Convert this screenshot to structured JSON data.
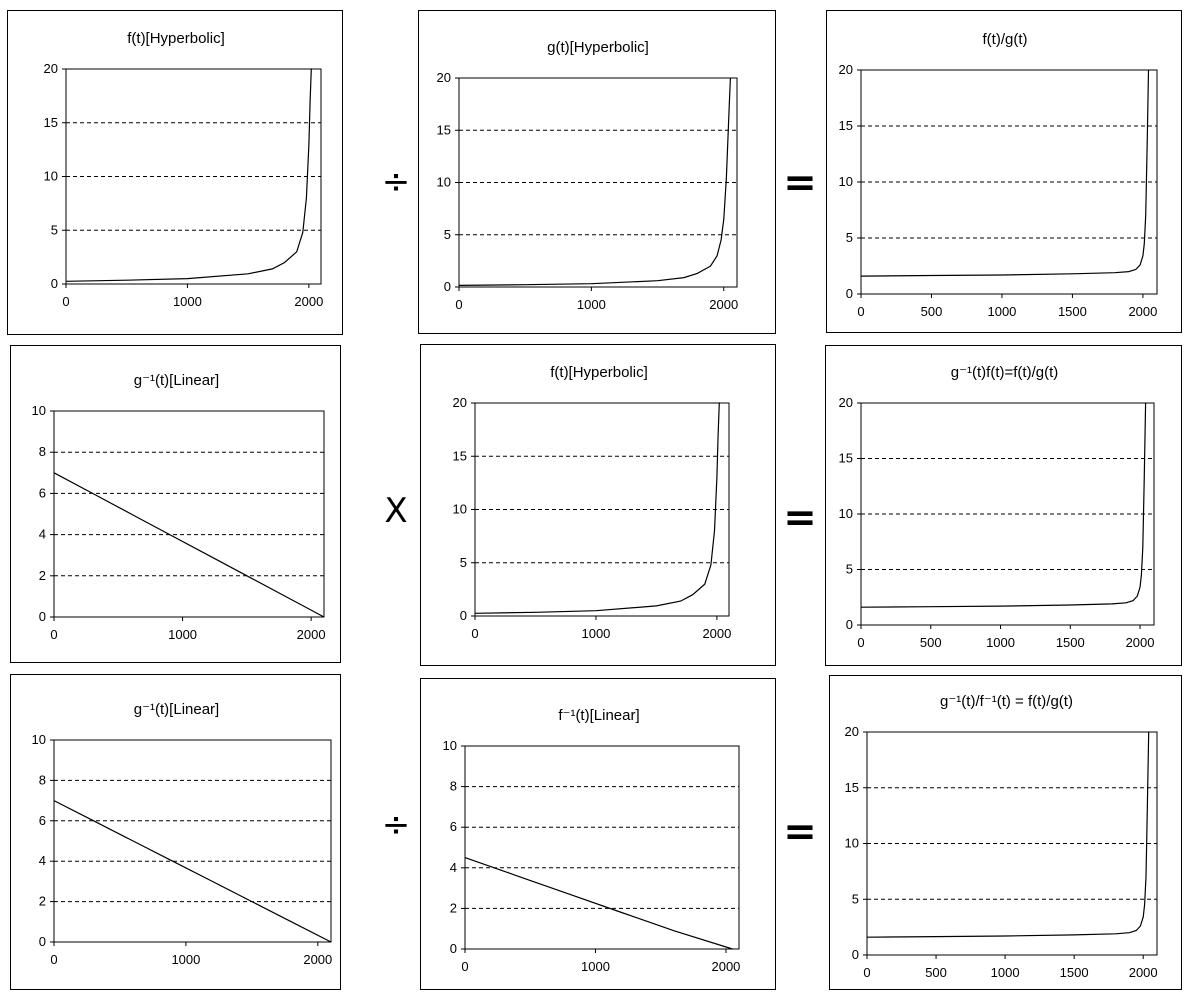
{
  "operators": [
    "÷",
    "=",
    "X",
    "=",
    "÷",
    "="
  ],
  "chart_data": [
    {
      "type": "line",
      "title": "f(t)[Hyperbolic]",
      "xticks": [
        "0",
        "1000",
        "2000"
      ],
      "xlim": [
        0,
        2100
      ],
      "yticks": [
        "0",
        "5",
        "10",
        "15",
        "20"
      ],
      "ylim": [
        0,
        20
      ],
      "grid": "horizontal dashed",
      "series": [
        {
          "x": [
            0,
            500,
            1000,
            1500,
            1700,
            1800,
            1900,
            1950,
            1980,
            2000,
            2010,
            2020,
            2025
          ],
          "y": [
            0.25,
            0.35,
            0.5,
            0.95,
            1.4,
            2.0,
            3.0,
            4.8,
            8.0,
            13.0,
            17.0,
            20.0,
            20.0
          ]
        }
      ]
    },
    {
      "type": "line",
      "title": "g(t)[Hyperbolic]",
      "xticks": [
        "0",
        "1000",
        "2000"
      ],
      "xlim": [
        0,
        2100
      ],
      "yticks": [
        "0",
        "5",
        "10",
        "15",
        "20"
      ],
      "ylim": [
        0,
        20
      ],
      "grid": "horizontal dashed",
      "series": [
        {
          "x": [
            0,
            500,
            1000,
            1500,
            1700,
            1800,
            1900,
            1950,
            1980,
            2000,
            2020,
            2040,
            2050
          ],
          "y": [
            0.15,
            0.22,
            0.32,
            0.6,
            0.9,
            1.3,
            2.0,
            3.0,
            4.5,
            6.5,
            10.5,
            17.0,
            20.0
          ]
        }
      ]
    },
    {
      "type": "line",
      "title": "f(t)/g(t)",
      "xticks": [
        "0",
        "500",
        "1000",
        "1500",
        "2000"
      ],
      "xlim": [
        0,
        2100
      ],
      "yticks": [
        "0",
        "5",
        "10",
        "15",
        "20"
      ],
      "ylim": [
        0,
        20
      ],
      "grid": "horizontal dashed",
      "series": [
        {
          "x": [
            0,
            500,
            1000,
            1500,
            1800,
            1900,
            1950,
            1980,
            2000,
            2010,
            2020,
            2030,
            2040
          ],
          "y": [
            1.6,
            1.65,
            1.7,
            1.8,
            1.9,
            2.0,
            2.2,
            2.6,
            3.4,
            4.5,
            7.0,
            13.0,
            20.0
          ]
        }
      ]
    },
    {
      "type": "line",
      "title": "g⁻¹(t)[Linear]",
      "xticks": [
        "0",
        "1000",
        "2000"
      ],
      "xlim": [
        0,
        2100
      ],
      "yticks": [
        "0",
        "2",
        "4",
        "6",
        "8",
        "10"
      ],
      "ylim": [
        0,
        10
      ],
      "grid": "horizontal dashed",
      "series": [
        {
          "x": [
            0,
            300,
            600,
            900,
            1200,
            1500,
            1800,
            2100
          ],
          "y": [
            7.0,
            6.0,
            5.0,
            4.0,
            3.0,
            2.0,
            1.0,
            0.0
          ]
        }
      ]
    },
    {
      "type": "line",
      "title": "f(t)[Hyperbolic]",
      "xticks": [
        "0",
        "1000",
        "2000"
      ],
      "xlim": [
        0,
        2100
      ],
      "yticks": [
        "0",
        "5",
        "10",
        "15",
        "20"
      ],
      "ylim": [
        0,
        20
      ],
      "grid": "horizontal dashed",
      "series": [
        {
          "x": [
            0,
            500,
            1000,
            1500,
            1700,
            1800,
            1900,
            1950,
            1980,
            2000,
            2010,
            2020,
            2025
          ],
          "y": [
            0.25,
            0.35,
            0.5,
            0.95,
            1.4,
            2.0,
            3.0,
            4.8,
            8.0,
            13.0,
            17.0,
            20.0,
            20.0
          ]
        }
      ]
    },
    {
      "type": "line",
      "title": "g⁻¹(t)f(t)=f(t)/g(t)",
      "xticks": [
        "0",
        "500",
        "1000",
        "1500",
        "2000"
      ],
      "xlim": [
        0,
        2100
      ],
      "yticks": [
        "0",
        "5",
        "10",
        "15",
        "20"
      ],
      "ylim": [
        0,
        20
      ],
      "grid": "horizontal dashed",
      "series": [
        {
          "x": [
            0,
            500,
            1000,
            1500,
            1800,
            1900,
            1950,
            1980,
            2000,
            2010,
            2020,
            2030,
            2040
          ],
          "y": [
            1.6,
            1.65,
            1.7,
            1.8,
            1.9,
            2.0,
            2.2,
            2.6,
            3.4,
            4.5,
            7.0,
            13.0,
            20.0
          ]
        }
      ]
    },
    {
      "type": "line",
      "title": "g⁻¹(t)[Linear]",
      "xticks": [
        "0",
        "1000",
        "2000"
      ],
      "xlim": [
        0,
        2100
      ],
      "yticks": [
        "0",
        "2",
        "4",
        "6",
        "8",
        "10"
      ],
      "ylim": [
        0,
        10
      ],
      "grid": "horizontal dashed",
      "series": [
        {
          "x": [
            0,
            300,
            600,
            900,
            1200,
            1500,
            1800,
            2100
          ],
          "y": [
            7.0,
            6.0,
            5.0,
            4.0,
            3.0,
            2.0,
            1.0,
            0.0
          ]
        }
      ]
    },
    {
      "type": "line",
      "title": "f⁻¹(t)[Linear]",
      "xticks": [
        "0",
        "1000",
        "2000"
      ],
      "xlim": [
        0,
        2100
      ],
      "yticks": [
        "0",
        "2",
        "4",
        "6",
        "8",
        "10"
      ],
      "ylim": [
        0,
        10
      ],
      "grid": "horizontal dashed",
      "series": [
        {
          "x": [
            0,
            400,
            800,
            1200,
            1600,
            2050
          ],
          "y": [
            4.5,
            3.6,
            2.7,
            1.8,
            0.9,
            0.0
          ]
        }
      ]
    },
    {
      "type": "line",
      "title": "g⁻¹(t)/f⁻¹(t) = f(t)/g(t)",
      "xticks": [
        "0",
        "500",
        "1000",
        "1500",
        "2000"
      ],
      "xlim": [
        0,
        2100
      ],
      "yticks": [
        "0",
        "5",
        "10",
        "15",
        "20"
      ],
      "ylim": [
        0,
        20
      ],
      "grid": "horizontal dashed",
      "series": [
        {
          "x": [
            0,
            500,
            1000,
            1500,
            1800,
            1900,
            1950,
            1980,
            2000,
            2010,
            2020,
            2030,
            2040
          ],
          "y": [
            1.6,
            1.65,
            1.7,
            1.8,
            1.9,
            2.0,
            2.2,
            2.6,
            3.4,
            4.5,
            7.0,
            13.0,
            20.0
          ]
        }
      ]
    }
  ]
}
